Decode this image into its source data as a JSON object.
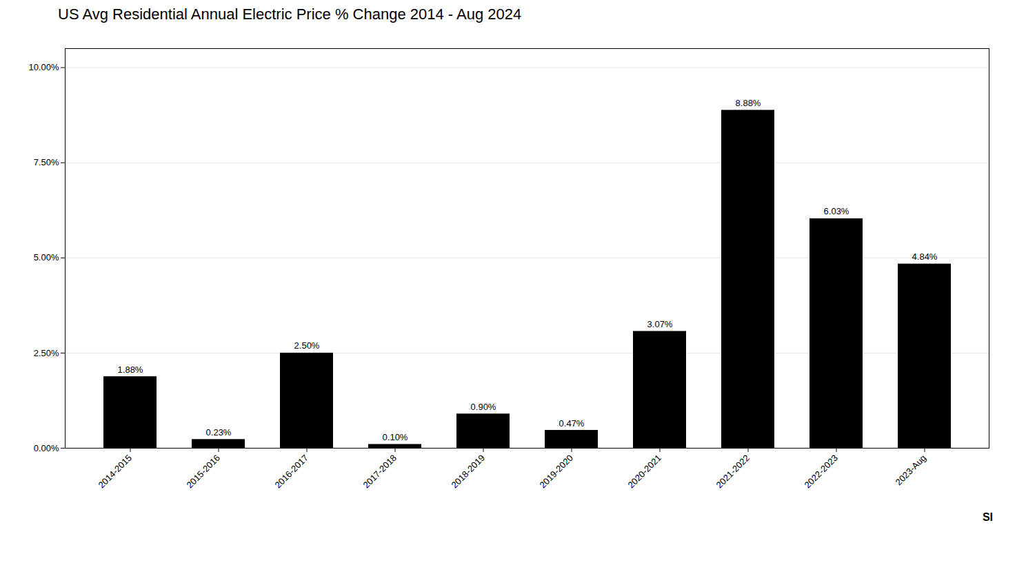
{
  "chart_data": {
    "type": "bar",
    "title": "US Avg Residential Annual Electric Price % Change 2014 - Aug 2024",
    "categories": [
      "2014-2015",
      "2015-2016",
      "2016-2017",
      "2017-2018",
      "2018-2019",
      "2019-2020",
      "2020-2021",
      "2021-2022",
      "2022-2023",
      "2023-Aug"
    ],
    "values": [
      1.88,
      0.23,
      2.5,
      0.1,
      0.9,
      0.47,
      3.07,
      8.88,
      6.03,
      4.84
    ],
    "value_labels": [
      "1.88%",
      "0.23%",
      "2.50%",
      "0.10%",
      "0.90%",
      "0.47%",
      "3.07%",
      "8.88%",
      "6.03%",
      "4.84%"
    ],
    "data_labels": true,
    "ylim": [
      0,
      10.5
    ],
    "yticks": [
      {
        "value": 0.0,
        "label": "0.00%"
      },
      {
        "value": 2.5,
        "label": "2.50%"
      },
      {
        "value": 5.0,
        "label": "5.00%"
      },
      {
        "value": 7.5,
        "label": "7.50%"
      },
      {
        "value": 10.0,
        "label": "10.00%"
      }
    ],
    "grid": true,
    "annotations": [
      "SI"
    ]
  }
}
